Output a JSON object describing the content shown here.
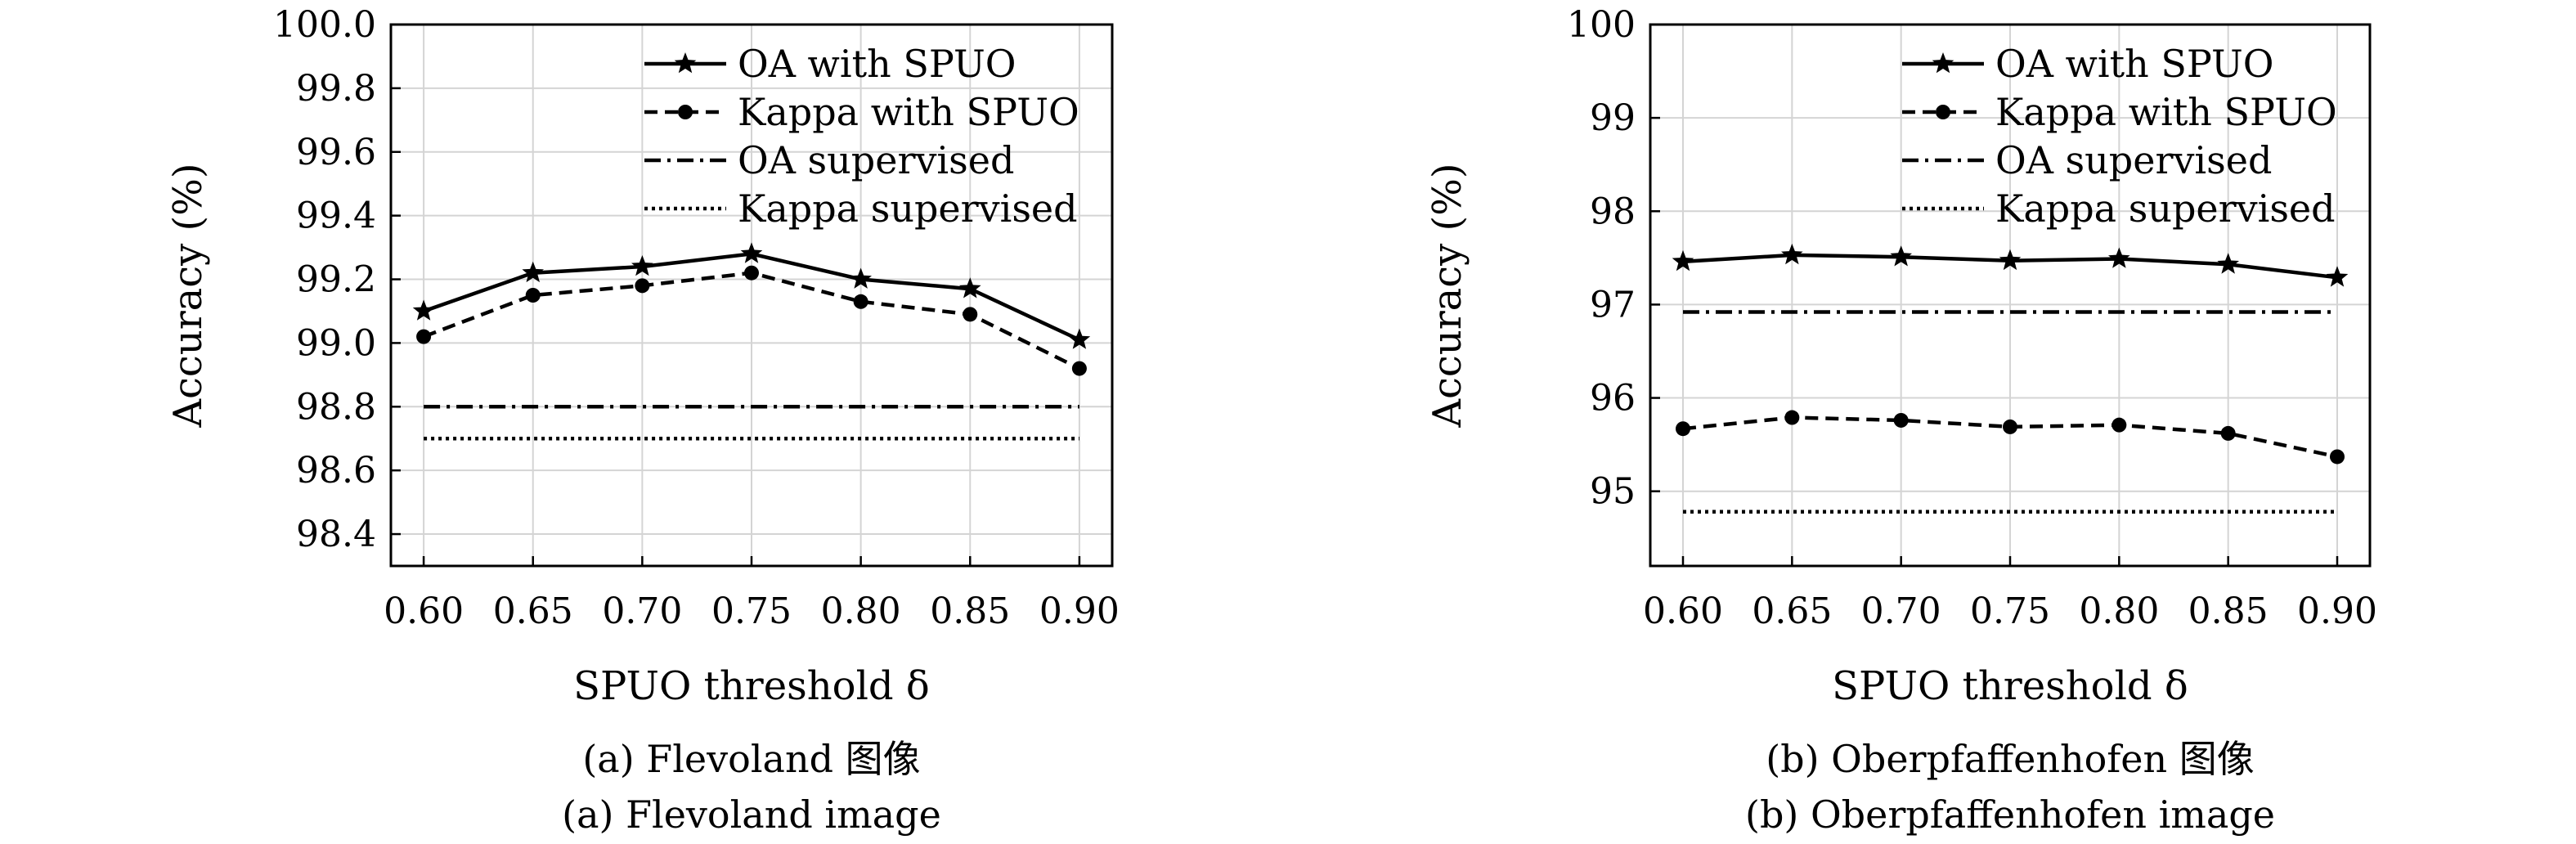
{
  "chart_data": [
    {
      "type": "line",
      "x": [
        0.6,
        0.65,
        0.7,
        0.75,
        0.8,
        0.85,
        0.9
      ],
      "x_tick_labels": [
        "0.60",
        "0.65",
        "0.70",
        "0.75",
        "0.80",
        "0.85",
        "0.90"
      ],
      "xlim": [
        0.585,
        0.915
      ],
      "y_ticks": [
        98.4,
        98.6,
        98.8,
        99.0,
        99.2,
        99.4,
        99.6,
        99.8,
        100.0
      ],
      "y_tick_labels": [
        "98.4",
        "98.6",
        "98.8",
        "99.0",
        "99.2",
        "99.4",
        "99.6",
        "99.8",
        "100.0"
      ],
      "ylim": [
        98.3,
        100.0
      ],
      "grid": true,
      "xlabel": "SPUO threshold δ",
      "ylabel": "Accuracy (%)",
      "legend_position": "top-right",
      "caption_cn": "(a) Flevoland 图像",
      "caption_en": "(a) Flevoland image",
      "series": [
        {
          "name": "OA with SPUO",
          "style": "solid",
          "marker": "star",
          "values": [
            99.1,
            99.22,
            99.24,
            99.28,
            99.2,
            99.17,
            99.01
          ]
        },
        {
          "name": "Kappa with SPUO",
          "style": "dashed",
          "marker": "circle",
          "values": [
            99.02,
            99.15,
            99.18,
            99.22,
            99.13,
            99.09,
            98.92
          ]
        },
        {
          "name": "OA supervised",
          "style": "dashdot",
          "marker": "none",
          "values": [
            98.8,
            98.8,
            98.8,
            98.8,
            98.8,
            98.8,
            98.8
          ]
        },
        {
          "name": "Kappa supervised",
          "style": "dotted",
          "marker": "none",
          "values": [
            98.7,
            98.7,
            98.7,
            98.7,
            98.7,
            98.7,
            98.7
          ]
        }
      ]
    },
    {
      "type": "line",
      "x": [
        0.6,
        0.65,
        0.7,
        0.75,
        0.8,
        0.85,
        0.9
      ],
      "x_tick_labels": [
        "0.60",
        "0.65",
        "0.70",
        "0.75",
        "0.80",
        "0.85",
        "0.90"
      ],
      "xlim": [
        0.585,
        0.915
      ],
      "y_ticks": [
        95,
        96,
        97,
        98,
        99,
        100
      ],
      "y_tick_labels": [
        "95",
        "96",
        "97",
        "98",
        "99",
        "100"
      ],
      "ylim": [
        94.2,
        100.0
      ],
      "grid": true,
      "xlabel": "SPUO threshold δ",
      "ylabel": "Accuracy (%)",
      "legend_position": "top-right",
      "caption_cn": "(b) Oberpfaffenhofen 图像",
      "caption_en": "(b) Oberpfaffenhofen image",
      "series": [
        {
          "name": "OA with SPUO",
          "style": "solid",
          "marker": "star",
          "values": [
            97.46,
            97.53,
            97.51,
            97.47,
            97.49,
            97.43,
            97.29
          ]
        },
        {
          "name": "Kappa with SPUO",
          "style": "dashed",
          "marker": "circle",
          "values": [
            95.67,
            95.79,
            95.76,
            95.69,
            95.71,
            95.62,
            95.37
          ]
        },
        {
          "name": "OA supervised",
          "style": "dashdot",
          "marker": "none",
          "values": [
            96.92,
            96.92,
            96.92,
            96.92,
            96.92,
            96.92,
            96.92
          ]
        },
        {
          "name": "Kappa supervised",
          "style": "dotted",
          "marker": "none",
          "values": [
            94.78,
            94.78,
            94.78,
            94.78,
            94.78,
            94.78,
            94.78
          ]
        }
      ]
    }
  ]
}
